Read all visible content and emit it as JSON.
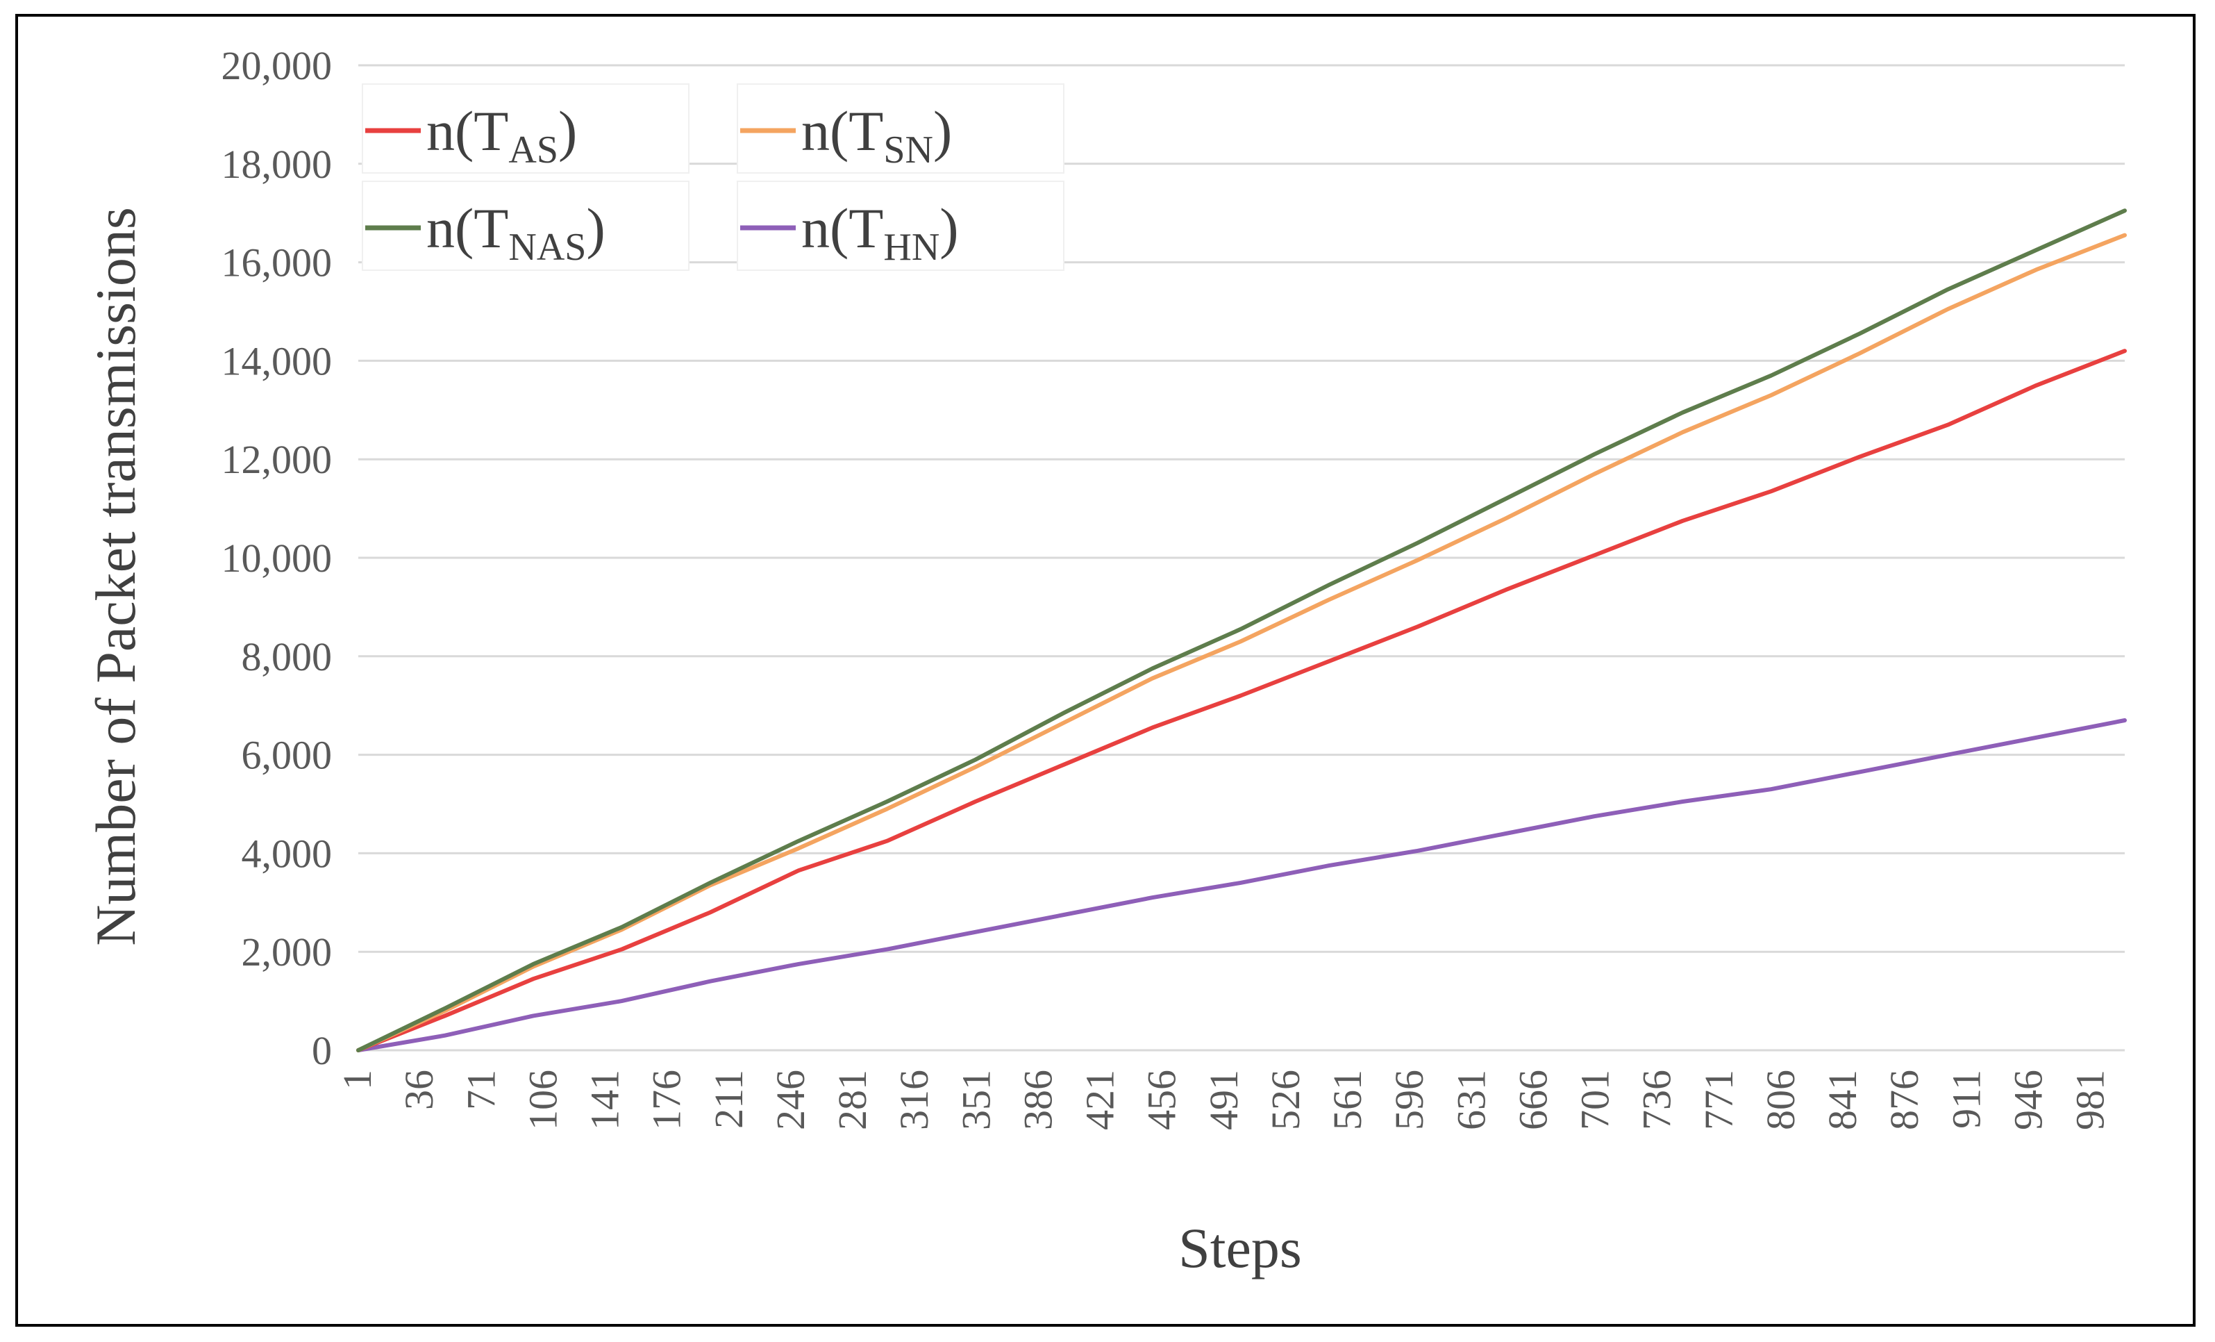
{
  "chart_data": {
    "type": "line",
    "title": "",
    "xlabel": "Steps",
    "ylabel": "Number of Packet transmissions",
    "x_tick_labels": [
      "1",
      "36",
      "71",
      "106",
      "141",
      "176",
      "211",
      "246",
      "281",
      "316",
      "351",
      "386",
      "421",
      "456",
      "491",
      "526",
      "561",
      "596",
      "631",
      "666",
      "701",
      "736",
      "771",
      "806",
      "841",
      "876",
      "911",
      "946",
      "981"
    ],
    "x_tick_values": [
      1,
      36,
      71,
      106,
      141,
      176,
      211,
      246,
      281,
      316,
      351,
      386,
      421,
      456,
      491,
      526,
      561,
      596,
      631,
      666,
      701,
      736,
      771,
      806,
      841,
      876,
      911,
      946,
      981
    ],
    "xlim": [
      1,
      1000
    ],
    "y_tick_labels": [
      "0",
      "2,000",
      "4,000",
      "6,000",
      "8,000",
      "10,000",
      "12,000",
      "14,000",
      "16,000",
      "18,000",
      "20,000"
    ],
    "y_tick_values": [
      0,
      2000,
      4000,
      6000,
      8000,
      10000,
      12000,
      14000,
      16000,
      18000,
      20000
    ],
    "ylim": [
      0,
      20000
    ],
    "grid": "horizontal",
    "legend_position": "top-left",
    "series": [
      {
        "name": "n(T_AS)",
        "legend_main": "n(T",
        "legend_sub": "AS",
        "legend_close": ")",
        "color": "#e8403f",
        "x": [
          1,
          50,
          100,
          150,
          200,
          250,
          300,
          350,
          400,
          450,
          500,
          550,
          600,
          650,
          700,
          750,
          800,
          850,
          900,
          950,
          1000
        ],
        "values": [
          0,
          700,
          1450,
          2050,
          2800,
          3650,
          4250,
          5050,
          5800,
          6550,
          7200,
          7900,
          8600,
          9350,
          10050,
          10750,
          11350,
          12050,
          12700,
          13500,
          14200
        ]
      },
      {
        "name": "n(T_SN)",
        "legend_main": "n(T",
        "legend_sub": "SN",
        "legend_close": ")",
        "color": "#f4a460",
        "x": [
          1,
          50,
          100,
          150,
          200,
          250,
          300,
          350,
          400,
          450,
          500,
          550,
          600,
          650,
          700,
          750,
          800,
          850,
          900,
          950,
          1000
        ],
        "values": [
          0,
          800,
          1700,
          2450,
          3350,
          4100,
          4900,
          5750,
          6650,
          7550,
          8300,
          9150,
          9950,
          10800,
          11700,
          12550,
          13300,
          14150,
          15050,
          15850,
          16550
        ]
      },
      {
        "name": "n(T_NAS)",
        "legend_main": "n(T",
        "legend_sub": "NAS",
        "legend_close": ")",
        "color": "#5e7d4c",
        "x": [
          1,
          50,
          100,
          150,
          200,
          250,
          300,
          350,
          400,
          450,
          500,
          550,
          600,
          650,
          700,
          750,
          800,
          850,
          900,
          950,
          1000
        ],
        "values": [
          0,
          850,
          1750,
          2500,
          3400,
          4250,
          5050,
          5900,
          6850,
          7750,
          8550,
          9450,
          10300,
          11200,
          12100,
          12950,
          13700,
          14550,
          15450,
          16250,
          17050
        ]
      },
      {
        "name": "n(T_HN)",
        "legend_main": "n(T",
        "legend_sub": "HN",
        "legend_close": ")",
        "color": "#8e5fb8",
        "x": [
          1,
          50,
          100,
          150,
          200,
          250,
          300,
          350,
          400,
          450,
          500,
          550,
          600,
          650,
          700,
          750,
          800,
          850,
          900,
          950,
          1000
        ],
        "values": [
          0,
          300,
          700,
          1000,
          1400,
          1750,
          2050,
          2400,
          2750,
          3100,
          3400,
          3750,
          4050,
          4400,
          4750,
          5050,
          5300,
          5650,
          6000,
          6350,
          6700
        ]
      }
    ]
  }
}
